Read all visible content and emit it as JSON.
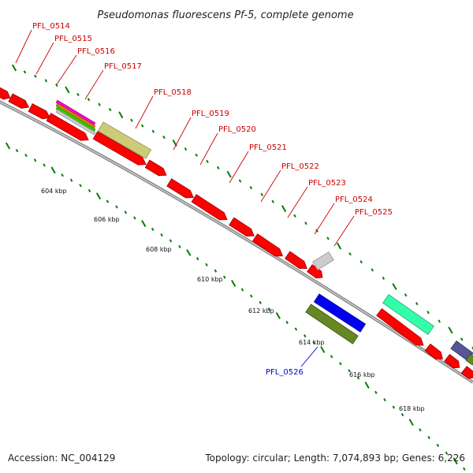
{
  "title": "Pseudomonas fluorescens Pf-5, complete genome",
  "footer": {
    "accession": "Accession: NC_004129",
    "topology": "Topology: circular; Length: 7,074,893 bp; Genes: 6,226"
  },
  "colors": {
    "forward_gene": "#ff0000",
    "backbone": "#999999",
    "tick": "#007f00",
    "label_red": "#cc0000",
    "label_blue": "#0000cc"
  },
  "scale_labels": [
    {
      "text": "604 kbp"
    },
    {
      "text": "606 kbp"
    },
    {
      "text": "608 kbp"
    },
    {
      "text": "610 kbp"
    },
    {
      "text": "612 kbp"
    },
    {
      "text": "614 kbp"
    },
    {
      "text": "616 kbp"
    },
    {
      "text": "618 kbp"
    }
  ],
  "gene_labels": [
    {
      "text": "PFL_0514",
      "color": "#cc0000"
    },
    {
      "text": "PFL_0515",
      "color": "#cc0000"
    },
    {
      "text": "PFL_0516",
      "color": "#cc0000"
    },
    {
      "text": "PFL_0517",
      "color": "#cc0000"
    },
    {
      "text": "PFL_0518",
      "color": "#cc0000"
    },
    {
      "text": "PFL_0519",
      "color": "#cc0000"
    },
    {
      "text": "PFL_0520",
      "color": "#cc0000"
    },
    {
      "text": "PFL_0521",
      "color": "#cc0000"
    },
    {
      "text": "PFL_0522",
      "color": "#cc0000"
    },
    {
      "text": "PFL_0523",
      "color": "#cc0000"
    },
    {
      "text": "PFL_0524",
      "color": "#cc0000"
    },
    {
      "text": "PFL_0525",
      "color": "#cc0000"
    },
    {
      "text": "PFL_0526",
      "color": "#0000cc"
    }
  ]
}
